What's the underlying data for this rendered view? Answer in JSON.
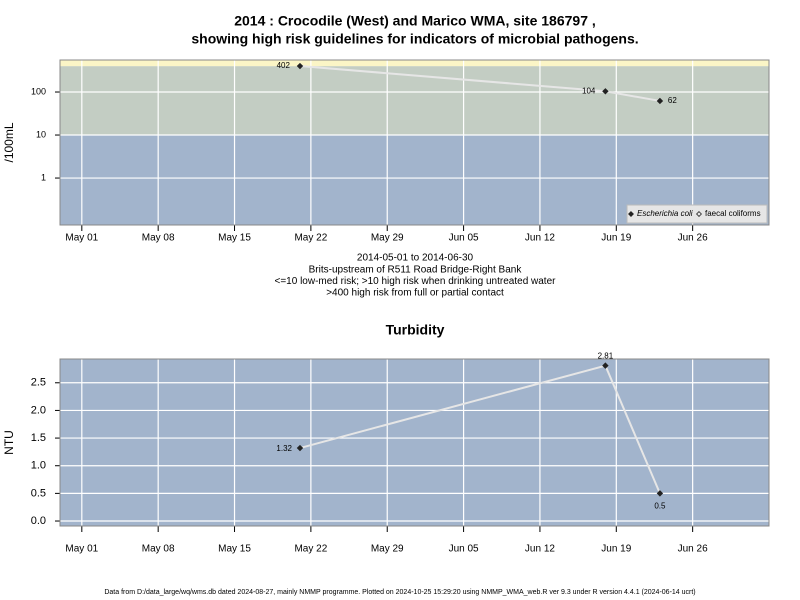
{
  "chart_data": [
    {
      "type": "line",
      "title": [
        "2014 : Crocodile (West) and Marico WMA, site 186797 ,",
        "showing high risk guidelines for indicators of microbial pathogens."
      ],
      "y_label": "/100mL",
      "notes": [
        "2014-05-01 to 2014-06-30",
        "Brits-upstream of R511 Road Bridge-Right Bank",
        "<=10 low-med risk; >10 high risk when drinking untreated water",
        ">400 high risk from full or partial contact"
      ],
      "x": [
        "2014-05-21",
        "2014-06-18",
        "2014-06-23"
      ],
      "series": [
        {
          "name": "Escherichia coli",
          "color": "#222222",
          "values": [
            402,
            104,
            62
          ]
        },
        {
          "name": "faecal coliforms",
          "color": "#222222",
          "values": [
            null,
            null,
            null
          ]
        }
      ],
      "xlim": [
        "2014-04-29",
        "2014-07-03"
      ],
      "xticks": [
        {
          "value": "2014-05-01",
          "label": "May 01"
        },
        {
          "value": "2014-05-08",
          "label": "May 08"
        },
        {
          "value": "2014-05-15",
          "label": "May 15"
        },
        {
          "value": "2014-05-22",
          "label": "May 22"
        },
        {
          "value": "2014-05-29",
          "label": "May 29"
        },
        {
          "value": "2014-06-05",
          "label": "Jun 05"
        },
        {
          "value": "2014-06-12",
          "label": "Jun 12"
        },
        {
          "value": "2014-06-19",
          "label": "Jun 19"
        },
        {
          "value": "2014-06-26",
          "label": "Jun 26"
        }
      ],
      "ylim": [
        0.081,
        555
      ],
      "yticks": [
        1,
        10,
        100
      ],
      "log_y": true,
      "grid": true,
      "thresholds": [
        10,
        400
      ],
      "band_colors": [
        "#a2b4cc",
        "#c3cdc3",
        "#fbf5c6"
      ],
      "line_color": "#e6e6e6",
      "legend": "bottom-right"
    },
    {
      "type": "line",
      "title": [
        "Turbidity"
      ],
      "y_label": "NTU",
      "x": [
        "2014-05-21",
        "2014-06-18",
        "2014-06-23"
      ],
      "series": [
        {
          "name": "Turbidity",
          "color": "#222222",
          "values": [
            1.32,
            2.81,
            0.5
          ]
        }
      ],
      "xlim": [
        "2014-04-29",
        "2014-07-03"
      ],
      "xticks": [
        {
          "value": "2014-05-01",
          "label": "May 01"
        },
        {
          "value": "2014-05-08",
          "label": "May 08"
        },
        {
          "value": "2014-05-15",
          "label": "May 15"
        },
        {
          "value": "2014-05-22",
          "label": "May 22"
        },
        {
          "value": "2014-05-29",
          "label": "May 29"
        },
        {
          "value": "2014-06-05",
          "label": "Jun 05"
        },
        {
          "value": "2014-06-12",
          "label": "Jun 12"
        },
        {
          "value": "2014-06-19",
          "label": "Jun 19"
        },
        {
          "value": "2014-06-26",
          "label": "Jun 26"
        }
      ],
      "ylim": [
        -0.09,
        2.93
      ],
      "yticks": [
        {
          "value": 0,
          "label": "0.0"
        },
        0.5,
        {
          "value": 1,
          "label": "1.0"
        },
        1.5,
        {
          "value": 2,
          "label": "2.0"
        },
        2.5
      ],
      "log_y": false,
      "grid": true,
      "background": "#a2b4cc",
      "line_color": "#e6e6e6"
    }
  ],
  "footer": "Data from D:/data_large/wq/wms.db dated 2024-08-27, mainly NMMP programme. Plotted on 2024-10-25 15:29:20 using NMMP_WMA_web.R ver 9.3 under R version 4.4.1 (2024-06-14 ucrt)"
}
